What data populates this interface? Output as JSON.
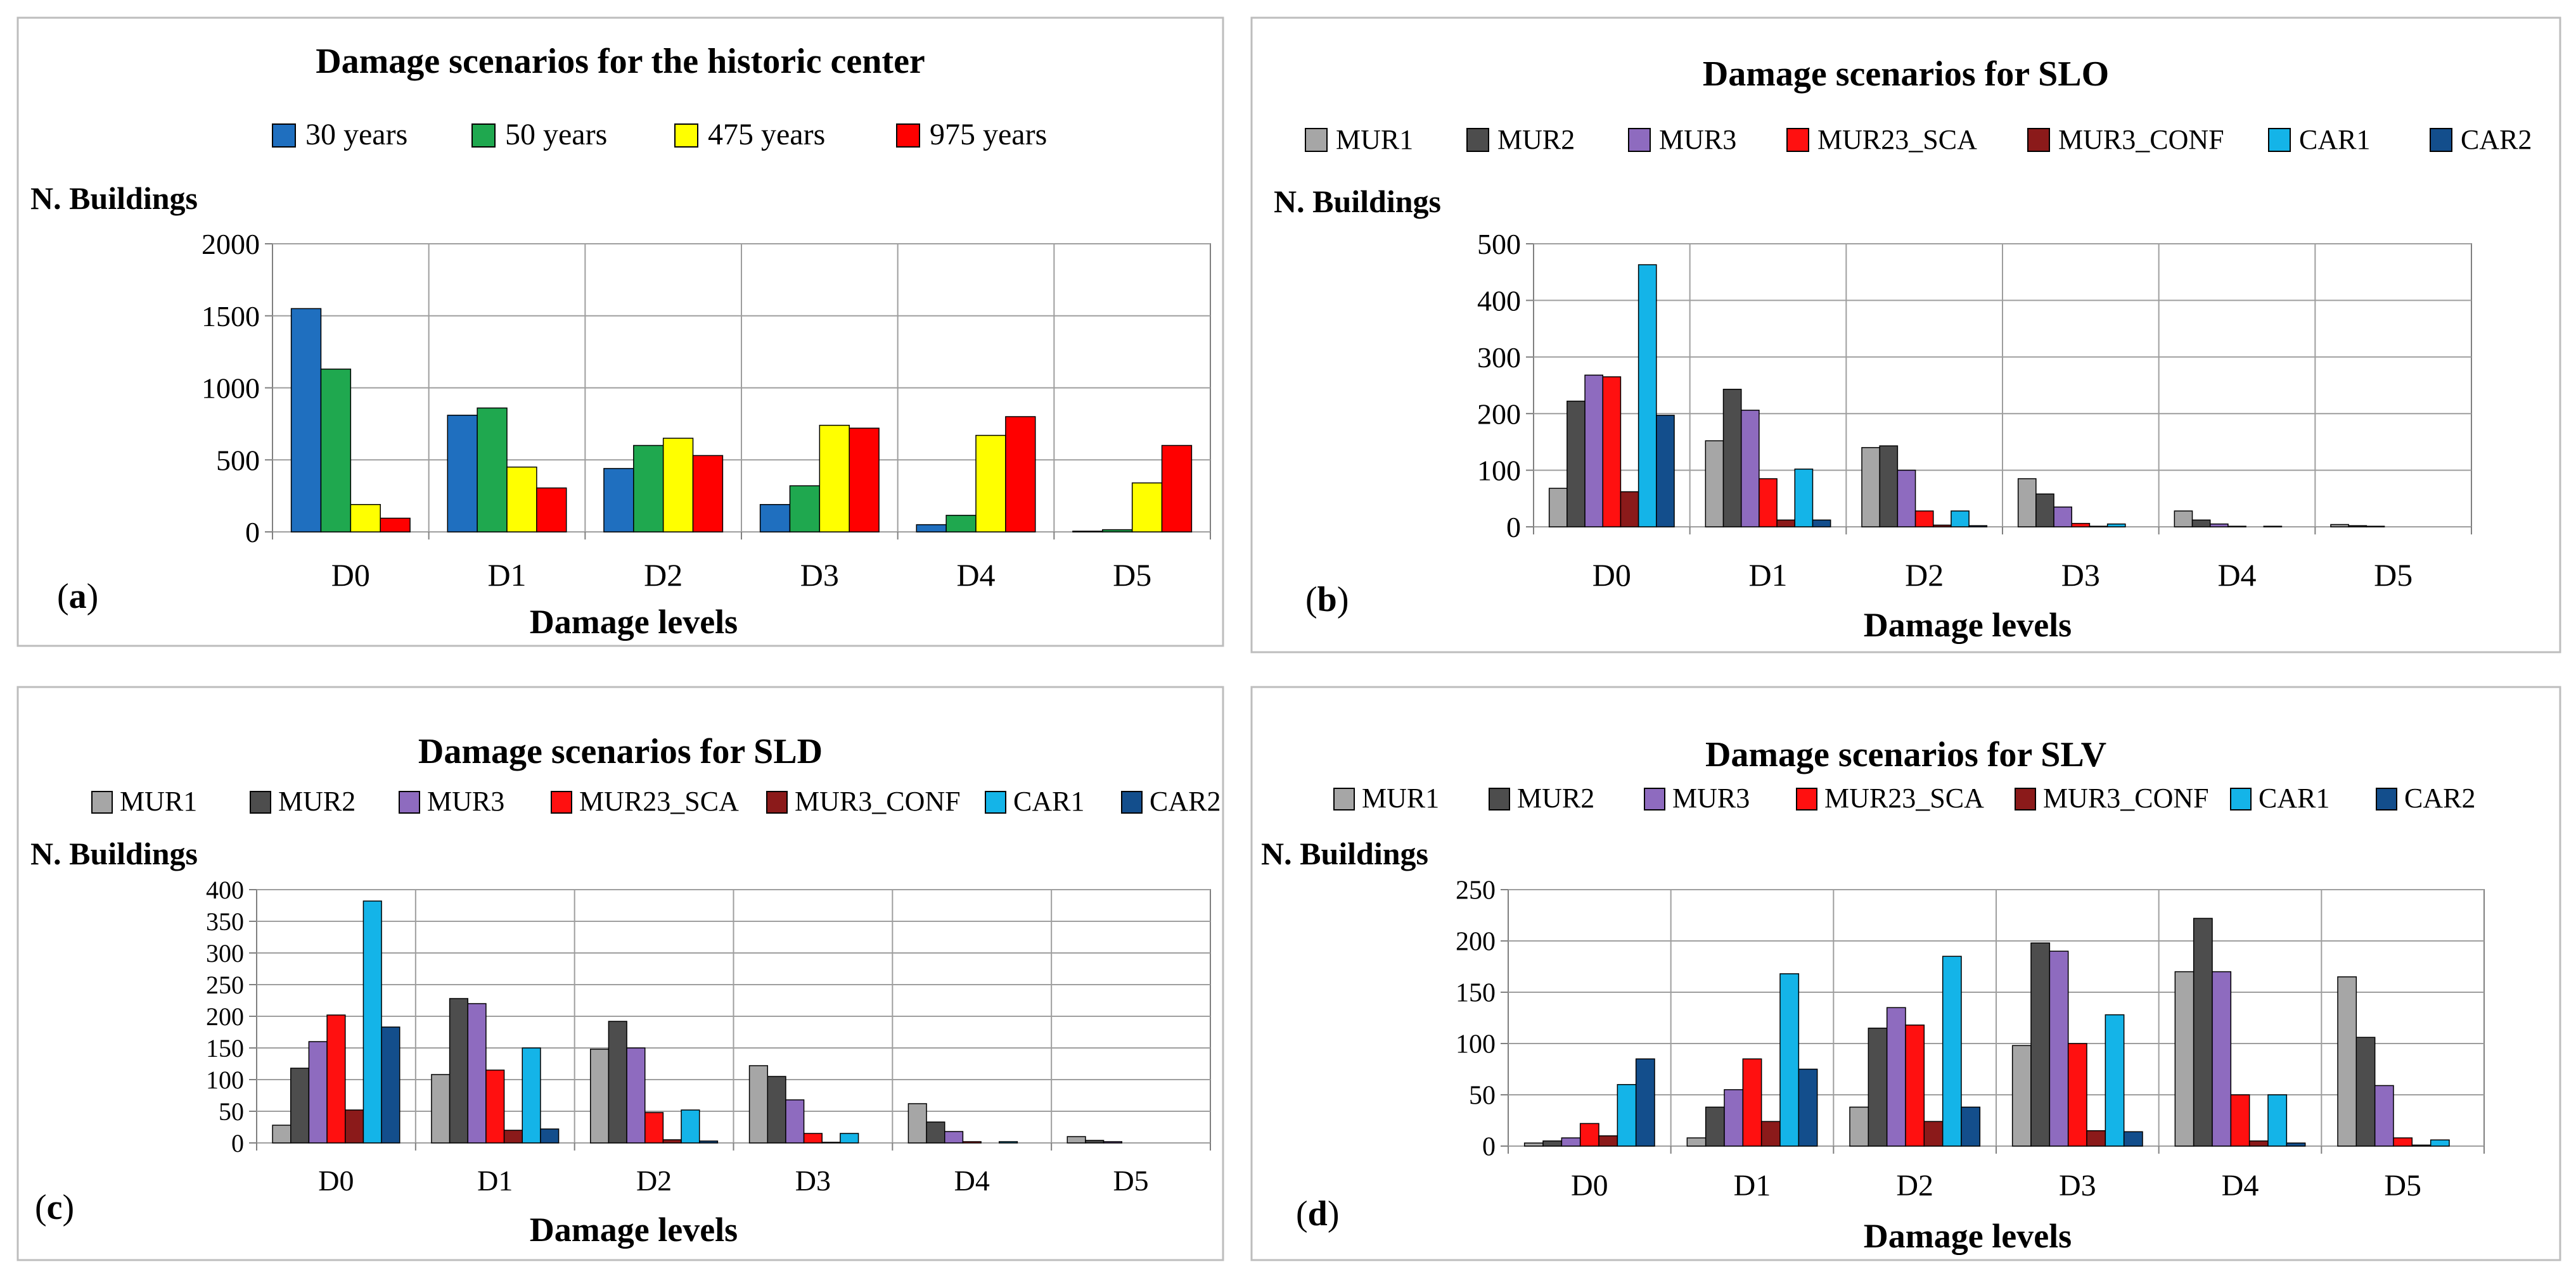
{
  "chart_data": [
    {
      "type": "bar",
      "panel_label": "(a)",
      "title": "Damage scenarios for the historic center",
      "ylabel": "N. Buildings",
      "xlabel": "Damage levels",
      "categories": [
        "D0",
        "D1",
        "D2",
        "D3",
        "D4",
        "D5"
      ],
      "ylim": [
        0,
        2000
      ],
      "yticks": [
        0,
        500,
        1000,
        1500,
        2000
      ],
      "legend_position": "top",
      "series": [
        {
          "name": "30 years",
          "color": "#1f6fbf",
          "values": [
            1550,
            810,
            440,
            190,
            50,
            5
          ]
        },
        {
          "name": "50 years",
          "color": "#1fa84f",
          "values": [
            1130,
            860,
            600,
            320,
            115,
            15
          ]
        },
        {
          "name": "475 years",
          "color": "#ffff00",
          "values": [
            190,
            450,
            650,
            740,
            670,
            340
          ]
        },
        {
          "name": "975 years",
          "color": "#ff0000",
          "values": [
            95,
            305,
            530,
            720,
            800,
            600
          ]
        }
      ]
    },
    {
      "type": "bar",
      "panel_label": "(b)",
      "title": "Damage scenarios for SLO",
      "ylabel": "N. Buildings",
      "xlabel": "Damage levels",
      "categories": [
        "D0",
        "D1",
        "D2",
        "D3",
        "D4",
        "D5"
      ],
      "ylim": [
        0,
        500
      ],
      "yticks": [
        0,
        100,
        200,
        300,
        400,
        500
      ],
      "legend_position": "top",
      "series": [
        {
          "name": "MUR1",
          "color": "#a6a6a6",
          "values": [
            68,
            152,
            140,
            85,
            28,
            4
          ]
        },
        {
          "name": "MUR2",
          "color": "#4d4d4d",
          "values": [
            222,
            243,
            143,
            58,
            12,
            2
          ]
        },
        {
          "name": "MUR3",
          "color": "#8e6bbf",
          "values": [
            268,
            206,
            100,
            35,
            5,
            1
          ]
        },
        {
          "name": "MUR23_SCA",
          "color": "#ff1010",
          "values": [
            265,
            85,
            28,
            6,
            1,
            0
          ]
        },
        {
          "name": "MUR3_CONF",
          "color": "#8b1a1a",
          "values": [
            62,
            12,
            3,
            1,
            0,
            0
          ]
        },
        {
          "name": "CAR1",
          "color": "#14b4e8",
          "values": [
            463,
            102,
            28,
            5,
            1,
            0
          ]
        },
        {
          "name": "CAR2",
          "color": "#134e8c",
          "values": [
            197,
            12,
            2,
            0,
            0,
            0
          ]
        }
      ]
    },
    {
      "type": "bar",
      "panel_label": "(c)",
      "title": "Damage scenarios for SLD",
      "ylabel": "N. Buildings",
      "xlabel": "Damage levels",
      "categories": [
        "D0",
        "D1",
        "D2",
        "D3",
        "D4",
        "D5"
      ],
      "ylim": [
        0,
        400
      ],
      "yticks": [
        0,
        50,
        100,
        150,
        200,
        250,
        300,
        350,
        400
      ],
      "legend_position": "top",
      "series": [
        {
          "name": "MUR1",
          "color": "#a6a6a6",
          "values": [
            28,
            108,
            148,
            122,
            62,
            10
          ]
        },
        {
          "name": "MUR2",
          "color": "#4d4d4d",
          "values": [
            118,
            228,
            192,
            105,
            33,
            4
          ]
        },
        {
          "name": "MUR3",
          "color": "#8e6bbf",
          "values": [
            160,
            220,
            150,
            68,
            18,
            2
          ]
        },
        {
          "name": "MUR23_SCA",
          "color": "#ff1010",
          "values": [
            202,
            115,
            48,
            15,
            2,
            0
          ]
        },
        {
          "name": "MUR3_CONF",
          "color": "#8b1a1a",
          "values": [
            52,
            20,
            5,
            1,
            0,
            0
          ]
        },
        {
          "name": "CAR1",
          "color": "#14b4e8",
          "values": [
            382,
            150,
            52,
            15,
            2,
            0
          ]
        },
        {
          "name": "CAR2",
          "color": "#134e8c",
          "values": [
            183,
            22,
            3,
            0,
            0,
            0
          ]
        }
      ]
    },
    {
      "type": "bar",
      "panel_label": "(d)",
      "title": "Damage scenarios for SLV",
      "ylabel": "N. Buildings",
      "xlabel": "Damage levels",
      "categories": [
        "D0",
        "D1",
        "D2",
        "D3",
        "D4",
        "D5"
      ],
      "ylim": [
        0,
        250
      ],
      "yticks": [
        0,
        50,
        100,
        150,
        200,
        250
      ],
      "legend_position": "top",
      "series": [
        {
          "name": "MUR1",
          "color": "#a6a6a6",
          "values": [
            3,
            8,
            38,
            98,
            170,
            165
          ]
        },
        {
          "name": "MUR2",
          "color": "#4d4d4d",
          "values": [
            5,
            38,
            115,
            198,
            222,
            106
          ]
        },
        {
          "name": "MUR3",
          "color": "#8e6bbf",
          "values": [
            8,
            55,
            135,
            190,
            170,
            59
          ]
        },
        {
          "name": "MUR23_SCA",
          "color": "#ff1010",
          "values": [
            22,
            85,
            118,
            100,
            50,
            8
          ]
        },
        {
          "name": "MUR3_CONF",
          "color": "#8b1a1a",
          "values": [
            10,
            24,
            24,
            15,
            5,
            1
          ]
        },
        {
          "name": "CAR1",
          "color": "#14b4e8",
          "values": [
            60,
            168,
            185,
            128,
            50,
            6
          ]
        },
        {
          "name": "CAR2",
          "color": "#134e8c",
          "values": [
            85,
            75,
            38,
            14,
            3,
            0
          ]
        }
      ]
    }
  ]
}
